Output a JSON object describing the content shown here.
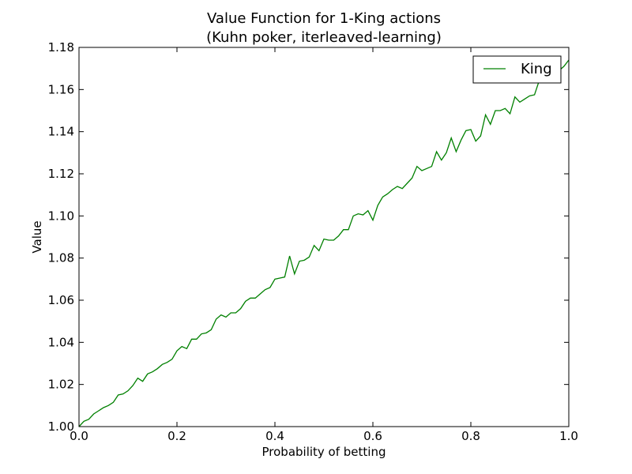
{
  "chart_data": {
    "type": "line",
    "title": "Value Function for 1-King actions",
    "subtitle": "(Kuhn poker, iterleaved-learning)",
    "xlabel": "Probability of betting",
    "ylabel": "Value",
    "xlim": [
      0.0,
      1.0
    ],
    "ylim": [
      1.0,
      1.18
    ],
    "xticks": [
      "0.0",
      "0.2",
      "0.4",
      "0.6",
      "0.8",
      "1.0"
    ],
    "yticks": [
      "1.00",
      "1.02",
      "1.04",
      "1.06",
      "1.08",
      "1.10",
      "1.12",
      "1.14",
      "1.16",
      "1.18"
    ],
    "grid": false,
    "legend_position": "top-right",
    "series": [
      {
        "name": "King",
        "color": "#008000",
        "x": [
          0.0,
          0.01,
          0.02,
          0.03,
          0.04,
          0.05,
          0.06,
          0.07,
          0.08,
          0.09,
          0.1,
          0.11,
          0.12,
          0.13,
          0.14,
          0.15,
          0.16,
          0.17,
          0.18,
          0.19,
          0.2,
          0.21,
          0.22,
          0.23,
          0.24,
          0.25,
          0.26,
          0.27,
          0.28,
          0.29,
          0.3,
          0.31,
          0.32,
          0.33,
          0.34,
          0.35,
          0.36,
          0.37,
          0.38,
          0.39,
          0.4,
          0.41,
          0.42,
          0.43,
          0.44,
          0.45,
          0.46,
          0.47,
          0.48,
          0.49,
          0.5,
          0.51,
          0.52,
          0.53,
          0.54,
          0.55,
          0.56,
          0.57,
          0.58,
          0.59,
          0.6,
          0.61,
          0.62,
          0.63,
          0.64,
          0.65,
          0.66,
          0.67,
          0.68,
          0.69,
          0.7,
          0.71,
          0.72,
          0.73,
          0.74,
          0.75,
          0.76,
          0.77,
          0.78,
          0.79,
          0.8,
          0.81,
          0.82,
          0.83,
          0.84,
          0.85,
          0.86,
          0.87,
          0.88,
          0.89,
          0.9,
          0.91,
          0.92,
          0.93,
          0.94,
          0.95,
          0.96,
          0.97,
          0.98,
          0.99,
          1.0
        ],
        "values": [
          1.0,
          1.0025,
          1.0035,
          1.006,
          1.0075,
          1.009,
          1.01,
          1.0115,
          1.015,
          1.0155,
          1.017,
          1.0195,
          1.023,
          1.0215,
          1.025,
          1.026,
          1.0275,
          1.0295,
          1.0305,
          1.032,
          1.036,
          1.038,
          1.037,
          1.0415,
          1.0415,
          1.044,
          1.0445,
          1.046,
          1.051,
          1.053,
          1.052,
          1.054,
          1.054,
          1.056,
          1.0595,
          1.061,
          1.061,
          1.063,
          1.065,
          1.066,
          1.07,
          1.0705,
          1.071,
          1.081,
          1.0725,
          1.0785,
          1.079,
          1.0805,
          1.086,
          1.0835,
          1.089,
          1.0885,
          1.0885,
          1.0905,
          1.0935,
          1.0935,
          1.1,
          1.101,
          1.1005,
          1.1025,
          1.098,
          1.105,
          1.109,
          1.1105,
          1.1125,
          1.114,
          1.113,
          1.1155,
          1.118,
          1.1235,
          1.1215,
          1.1225,
          1.1235,
          1.1305,
          1.1265,
          1.13,
          1.137,
          1.1305,
          1.136,
          1.1405,
          1.141,
          1.1355,
          1.138,
          1.148,
          1.1435,
          1.15,
          1.15,
          1.151,
          1.1485,
          1.1565,
          1.154,
          1.1555,
          1.157,
          1.1575,
          1.1645,
          1.166,
          1.1665,
          1.167,
          1.169,
          1.171,
          1.174
        ]
      }
    ]
  }
}
